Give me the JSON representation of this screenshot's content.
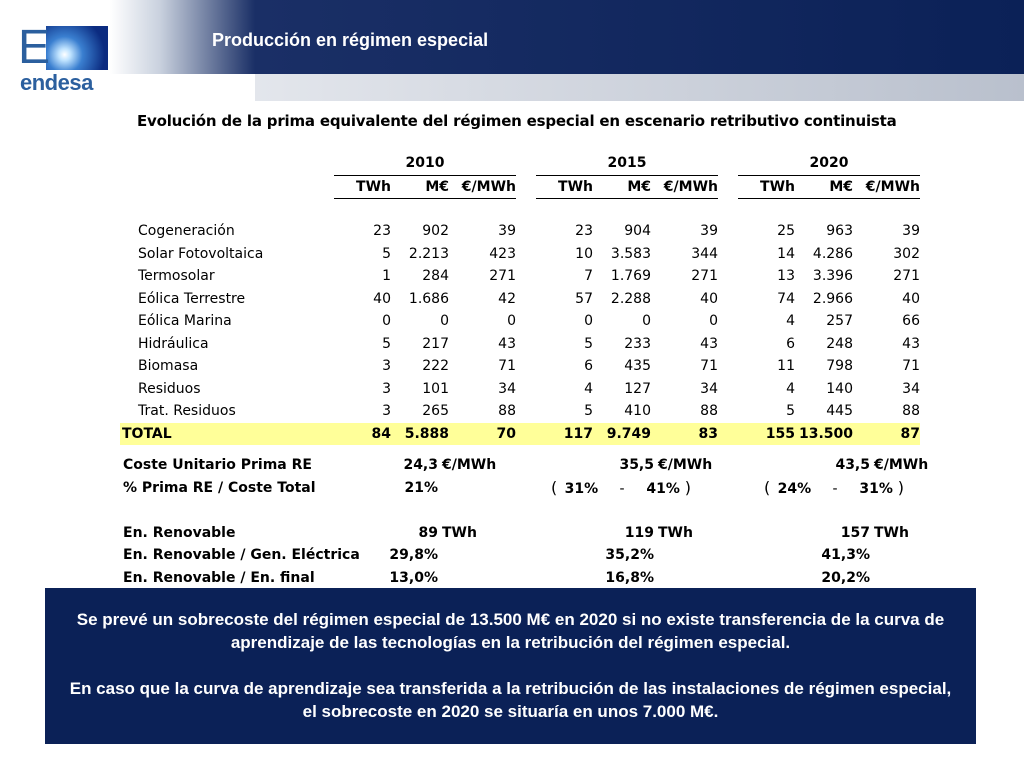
{
  "header": {
    "title": "Producción en régimen especial",
    "logo_letter": "E",
    "logo_text": "endesa"
  },
  "table": {
    "title": "Evolución de la prima equivalente del régimen especial en escenario retributivo continuista",
    "years": [
      "2010",
      "2015",
      "2020"
    ],
    "units": [
      "TWh",
      "M€",
      "€/MWh"
    ],
    "rows": [
      {
        "label": "Cogeneración",
        "values": [
          "23",
          "902",
          "39",
          "23",
          "904",
          "39",
          "25",
          "963",
          "39"
        ]
      },
      {
        "label": "Solar Fotovoltaica",
        "values": [
          "5",
          "2.213",
          "423",
          "10",
          "3.583",
          "344",
          "14",
          "4.286",
          "302"
        ]
      },
      {
        "label": "Termosolar",
        "values": [
          "1",
          "284",
          "271",
          "7",
          "1.769",
          "271",
          "13",
          "3.396",
          "271"
        ]
      },
      {
        "label": "Eólica Terrestre",
        "values": [
          "40",
          "1.686",
          "42",
          "57",
          "2.288",
          "40",
          "74",
          "2.966",
          "40"
        ]
      },
      {
        "label": "Eólica Marina",
        "values": [
          "0",
          "0",
          "0",
          "0",
          "0",
          "0",
          "4",
          "257",
          "66"
        ]
      },
      {
        "label": "Hidráulica",
        "values": [
          "5",
          "217",
          "43",
          "5",
          "233",
          "43",
          "6",
          "248",
          "43"
        ]
      },
      {
        "label": "Biomasa",
        "values": [
          "3",
          "222",
          "71",
          "6",
          "435",
          "71",
          "11",
          "798",
          "71"
        ]
      },
      {
        "label": "Residuos",
        "values": [
          "3",
          "101",
          "34",
          "4",
          "127",
          "34",
          "4",
          "140",
          "34"
        ]
      },
      {
        "label": "Trat. Residuos",
        "values": [
          "3",
          "265",
          "88",
          "5",
          "410",
          "88",
          "5",
          "445",
          "88"
        ]
      }
    ],
    "total": {
      "label": "TOTAL",
      "values": [
        "84",
        "5.888",
        "70",
        "117",
        "9.749",
        "83",
        "155",
        "13.500",
        "87"
      ]
    }
  },
  "summary": {
    "coste": {
      "label": "Coste Unitario Prima RE",
      "v2010": "24,3",
      "v2015": "35,5",
      "v2020": "43,5",
      "unit": "€/MWh"
    },
    "prima": {
      "label": "% Prima RE / Coste Total",
      "v2010": "21%",
      "open": "(",
      "close": ")",
      "a2015": "31%",
      "b2015": "-",
      "c2015": "41%",
      "a2020": "24%",
      "b2020": "-",
      "c2020": "31%"
    },
    "renovable": {
      "label": "En. Renovable",
      "v2010": "89",
      "v2015": "119",
      "v2020": "157",
      "unit": "TWh"
    },
    "gen_electrica": {
      "label": "En. Renovable / Gen. Eléctrica",
      "v2010": "29,8%",
      "v2015": "35,2%",
      "v2020": "41,3%"
    },
    "en_final": {
      "label": "En. Renovable / En. final",
      "v2010": "13,0%",
      "v2015": "16,8%",
      "v2020": "20,2%"
    }
  },
  "callout": {
    "p1": "Se prevé un sobrecoste del régimen especial de 13.500 M€ en 2020 si no existe transferencia de la curva de aprendizaje de las tecnologías en la retribución del régimen especial.",
    "p2": "En caso que la curva de aprendizaje sea transferida a la retribución de las instalaciones de régimen especial, el sobrecoste en 2020 se situaría en unos 7.000 M€."
  }
}
